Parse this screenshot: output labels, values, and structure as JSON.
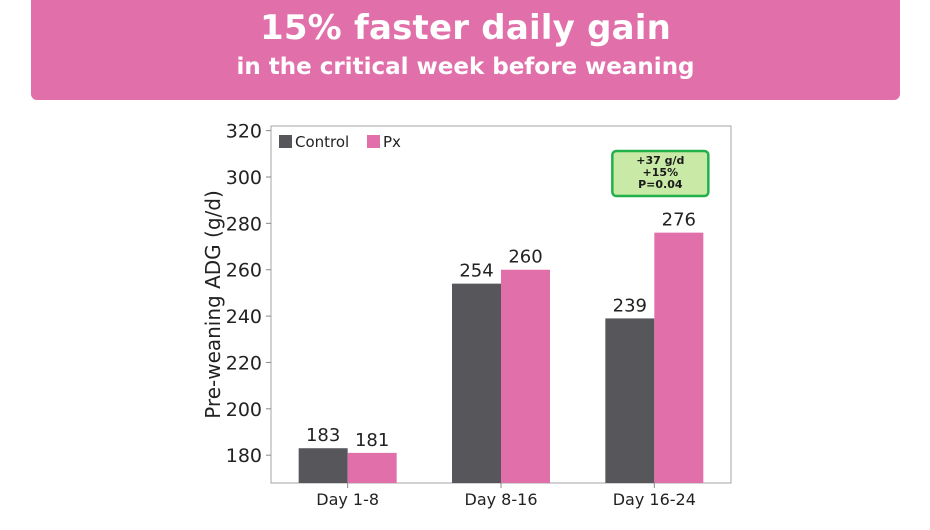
{
  "header": {
    "title": "15% faster daily gain",
    "subtitle": "in the critical week before weaning",
    "background_color": "#e170aa",
    "text_color": "#ffffff"
  },
  "chart_data": {
    "type": "bar",
    "title": "",
    "xlabel": "",
    "ylabel": "Pre-weaning ADG (g/d)",
    "categories": [
      "Day 1-8",
      "Day 8-16",
      "Day 16-24"
    ],
    "series": [
      {
        "name": "Control",
        "values": [
          183,
          254,
          239
        ],
        "color": "#57575b"
      },
      {
        "name": "Px",
        "values": [
          181,
          260,
          276
        ],
        "color": "#e170aa"
      }
    ],
    "ylim": [
      168,
      322
    ],
    "yticks": [
      180,
      200,
      220,
      240,
      260,
      280,
      300,
      320
    ],
    "grid": false,
    "legend": "top-left",
    "data_labels": true,
    "annotation": {
      "lines": [
        "+37 g/d",
        "+15%",
        "P=0.04"
      ],
      "category": "Day 16-24",
      "border_color": "#22b04b",
      "fill_color": "#c9e9a6"
    }
  }
}
